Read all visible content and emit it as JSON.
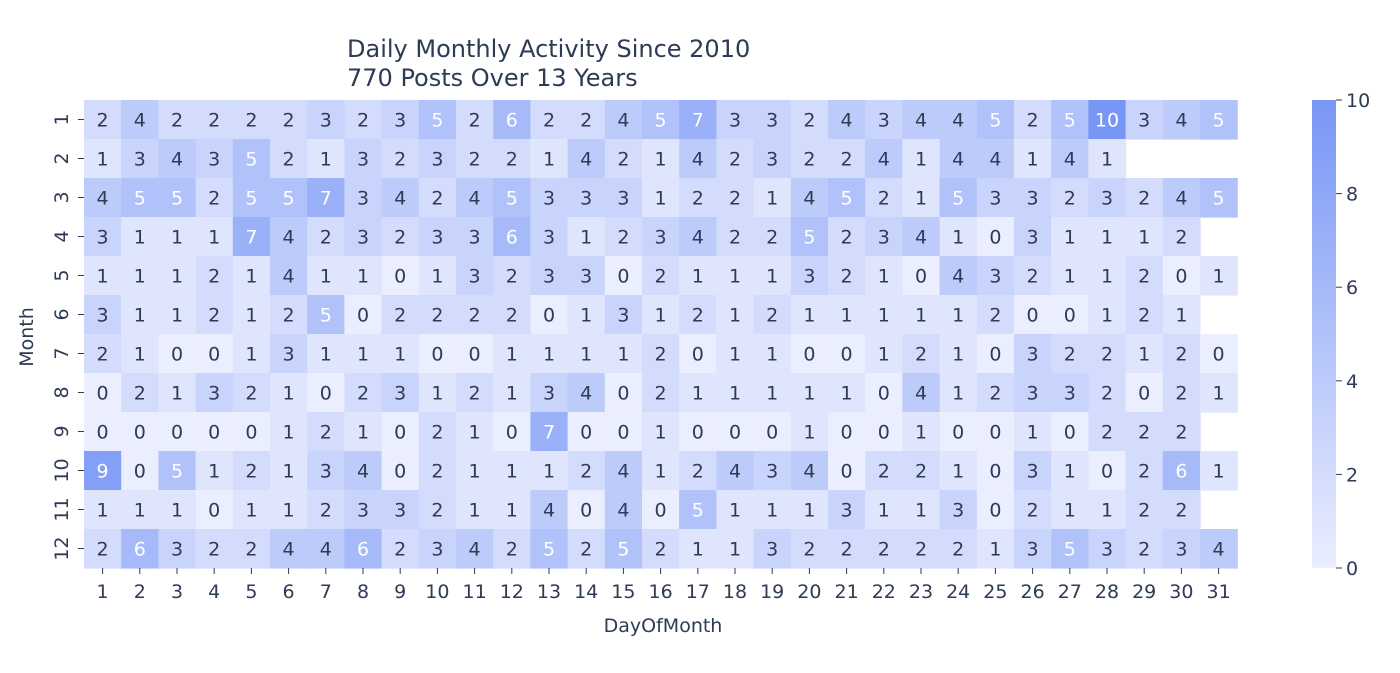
{
  "chart_data": {
    "type": "heatmap",
    "title": "Daily Monthly Activity Since 2010",
    "subtitle": "770 Posts Over 13 Years",
    "xlabel": "DayOfMonth",
    "ylabel": "Month",
    "x": [
      "1",
      "2",
      "3",
      "4",
      "5",
      "6",
      "7",
      "8",
      "9",
      "10",
      "11",
      "12",
      "13",
      "14",
      "15",
      "16",
      "17",
      "18",
      "19",
      "20",
      "21",
      "22",
      "23",
      "24",
      "25",
      "26",
      "27",
      "28",
      "29",
      "30",
      "31"
    ],
    "y": [
      "1",
      "2",
      "3",
      "4",
      "5",
      "6",
      "7",
      "8",
      "9",
      "10",
      "11",
      "12"
    ],
    "values": [
      [
        2,
        4,
        2,
        2,
        2,
        2,
        3,
        2,
        3,
        5,
        2,
        6,
        2,
        2,
        4,
        5,
        7,
        3,
        3,
        2,
        4,
        3,
        4,
        4,
        5,
        2,
        5,
        10,
        3,
        4,
        5
      ],
      [
        1,
        3,
        4,
        3,
        5,
        2,
        1,
        3,
        2,
        3,
        2,
        2,
        1,
        4,
        2,
        1,
        4,
        2,
        3,
        2,
        2,
        4,
        1,
        4,
        4,
        1,
        4,
        1,
        null,
        null,
        null
      ],
      [
        4,
        5,
        5,
        2,
        5,
        5,
        7,
        3,
        4,
        2,
        4,
        5,
        3,
        3,
        3,
        1,
        2,
        2,
        1,
        4,
        5,
        2,
        1,
        5,
        3,
        3,
        2,
        3,
        2,
        4,
        5
      ],
      [
        3,
        1,
        1,
        1,
        7,
        4,
        2,
        3,
        2,
        3,
        3,
        6,
        3,
        1,
        2,
        3,
        4,
        2,
        2,
        5,
        2,
        3,
        4,
        1,
        0,
        3,
        1,
        1,
        1,
        2,
        null
      ],
      [
        1,
        1,
        1,
        2,
        1,
        4,
        1,
        1,
        0,
        1,
        3,
        2,
        3,
        3,
        0,
        2,
        1,
        1,
        1,
        3,
        2,
        1,
        0,
        4,
        3,
        2,
        1,
        1,
        2,
        0,
        1
      ],
      [
        3,
        1,
        1,
        2,
        1,
        2,
        5,
        0,
        2,
        2,
        2,
        2,
        0,
        1,
        3,
        1,
        2,
        1,
        2,
        1,
        1,
        1,
        1,
        1,
        2,
        0,
        0,
        1,
        2,
        1,
        null
      ],
      [
        2,
        1,
        0,
        0,
        1,
        3,
        1,
        1,
        1,
        0,
        0,
        1,
        1,
        1,
        1,
        2,
        0,
        1,
        1,
        0,
        0,
        1,
        2,
        1,
        0,
        3,
        2,
        2,
        1,
        2,
        0
      ],
      [
        0,
        2,
        1,
        3,
        2,
        1,
        0,
        2,
        3,
        1,
        2,
        1,
        3,
        4,
        0,
        2,
        1,
        1,
        1,
        1,
        1,
        0,
        4,
        1,
        2,
        3,
        3,
        2,
        0,
        2,
        1
      ],
      [
        0,
        0,
        0,
        0,
        0,
        1,
        2,
        1,
        0,
        2,
        1,
        0,
        7,
        0,
        0,
        1,
        0,
        0,
        0,
        1,
        0,
        0,
        1,
        0,
        0,
        1,
        0,
        2,
        2,
        2,
        null
      ],
      [
        9,
        0,
        5,
        1,
        2,
        1,
        3,
        4,
        0,
        2,
        1,
        1,
        1,
        2,
        4,
        1,
        2,
        4,
        3,
        4,
        0,
        2,
        2,
        1,
        0,
        3,
        1,
        0,
        2,
        6,
        1
      ],
      [
        1,
        1,
        1,
        0,
        1,
        1,
        2,
        3,
        3,
        2,
        1,
        1,
        4,
        0,
        4,
        0,
        5,
        1,
        1,
        1,
        3,
        1,
        1,
        3,
        0,
        2,
        1,
        1,
        2,
        2,
        null
      ],
      [
        2,
        6,
        3,
        2,
        2,
        4,
        4,
        6,
        2,
        3,
        4,
        2,
        5,
        2,
        5,
        2,
        1,
        1,
        3,
        2,
        2,
        2,
        2,
        2,
        1,
        3,
        5,
        3,
        2,
        3,
        4
      ]
    ],
    "colorbar": {
      "min": 0,
      "max": 10,
      "ticks": [
        0,
        2,
        4,
        6,
        8,
        10
      ]
    },
    "colors": {
      "low": "#eaeefe",
      "high": "#7896f5",
      "text_dark": "#2e3b55",
      "text_light": "#ffffff"
    }
  }
}
